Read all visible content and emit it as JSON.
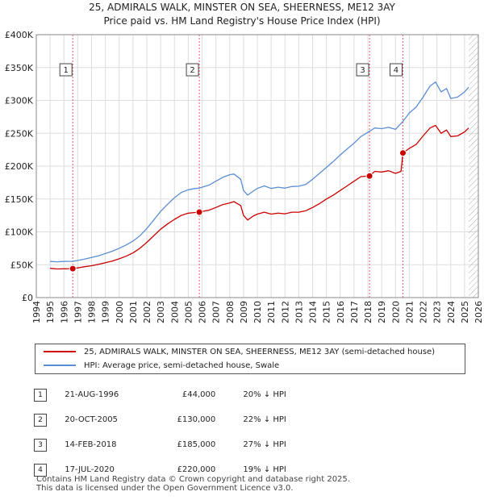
{
  "chart_data": {
    "type": "line",
    "title": "25, ADMIRALS WALK, MINSTER ON SEA, SHEERNESS, ME12 3AY",
    "subtitle": "Price paid vs. HM Land Registry's House Price Index (HPI)",
    "xlim": [
      1994,
      2026
    ],
    "ylim": [
      0,
      400000
    ],
    "x_ticks": [
      "1994",
      "1995",
      "1996",
      "1997",
      "1998",
      "1999",
      "2000",
      "2001",
      "2002",
      "2003",
      "2004",
      "2005",
      "2006",
      "2007",
      "2008",
      "2009",
      "2010",
      "2011",
      "2012",
      "2013",
      "2014",
      "2015",
      "2016",
      "2017",
      "2018",
      "2019",
      "2020",
      "2021",
      "2022",
      "2023",
      "2024",
      "2025",
      "2026"
    ],
    "y_ticks": [
      {
        "value": 0,
        "label": "£0"
      },
      {
        "value": 50000,
        "label": "£50K"
      },
      {
        "value": 100000,
        "label": "£100K"
      },
      {
        "value": 150000,
        "label": "£150K"
      },
      {
        "value": 200000,
        "label": "£200K"
      },
      {
        "value": 250000,
        "label": "£250K"
      },
      {
        "value": 300000,
        "label": "£300K"
      },
      {
        "value": 350000,
        "label": "£350K"
      },
      {
        "value": 400000,
        "label": "£400K"
      }
    ],
    "series": [
      {
        "name": "25, ADMIRALS WALK, MINSTER ON SEA, SHEERNESS, ME12 3AY (semi-detached house)",
        "color": "#cc0000",
        "points": [
          [
            1995.0,
            44500
          ],
          [
            1995.5,
            43500
          ],
          [
            1996.0,
            43800
          ],
          [
            1996.64,
            44000
          ],
          [
            1997.0,
            45200
          ],
          [
            1997.5,
            47000
          ],
          [
            1998.0,
            48500
          ],
          [
            1998.5,
            50500
          ],
          [
            1999.0,
            53000
          ],
          [
            1999.5,
            55500
          ],
          [
            2000.0,
            59000
          ],
          [
            2000.5,
            63000
          ],
          [
            2001.0,
            68000
          ],
          [
            2001.5,
            75000
          ],
          [
            2002.0,
            84000
          ],
          [
            2002.5,
            94000
          ],
          [
            2003.0,
            104000
          ],
          [
            2003.5,
            112000
          ],
          [
            2004.0,
            119000
          ],
          [
            2004.5,
            125000
          ],
          [
            2005.0,
            128500
          ],
          [
            2005.5,
            129500
          ],
          [
            2005.8,
            130000
          ],
          [
            2006.0,
            131000
          ],
          [
            2006.5,
            133000
          ],
          [
            2007.0,
            137000
          ],
          [
            2007.5,
            141500
          ],
          [
            2008.0,
            144000
          ],
          [
            2008.3,
            146000
          ],
          [
            2008.8,
            140000
          ],
          [
            2009.0,
            125000
          ],
          [
            2009.3,
            118000
          ],
          [
            2009.7,
            124000
          ],
          [
            2010.0,
            127000
          ],
          [
            2010.5,
            130000
          ],
          [
            2011.0,
            127000
          ],
          [
            2011.5,
            128500
          ],
          [
            2012.0,
            127500
          ],
          [
            2012.5,
            130000
          ],
          [
            2013.0,
            130000
          ],
          [
            2013.5,
            132000
          ],
          [
            2014.0,
            137000
          ],
          [
            2014.5,
            143000
          ],
          [
            2015.0,
            150000
          ],
          [
            2015.5,
            156000
          ],
          [
            2016.0,
            163000
          ],
          [
            2016.5,
            170000
          ],
          [
            2017.0,
            177000
          ],
          [
            2017.5,
            184000
          ],
          [
            2018.12,
            185000
          ],
          [
            2018.5,
            192000
          ],
          [
            2019.0,
            191000
          ],
          [
            2019.5,
            193000
          ],
          [
            2020.0,
            189000
          ],
          [
            2020.4,
            192000
          ],
          [
            2020.54,
            220000
          ],
          [
            2021.0,
            227000
          ],
          [
            2021.5,
            233000
          ],
          [
            2022.0,
            246000
          ],
          [
            2022.5,
            258000
          ],
          [
            2022.9,
            262000
          ],
          [
            2023.3,
            250000
          ],
          [
            2023.7,
            255000
          ],
          [
            2024.0,
            245000
          ],
          [
            2024.5,
            246000
          ],
          [
            2025.0,
            252000
          ],
          [
            2025.3,
            258000
          ]
        ]
      },
      {
        "name": "HPI: Average price, semi-detached house, Swale",
        "color": "#5b8ed6",
        "points": [
          [
            1995.0,
            55000
          ],
          [
            1995.5,
            54500
          ],
          [
            1996.0,
            55000
          ],
          [
            1996.64,
            55200
          ],
          [
            1997.0,
            56500
          ],
          [
            1997.5,
            58500
          ],
          [
            1998.0,
            61000
          ],
          [
            1998.5,
            63500
          ],
          [
            1999.0,
            67000
          ],
          [
            1999.5,
            70500
          ],
          [
            2000.0,
            75000
          ],
          [
            2000.5,
            80000
          ],
          [
            2001.0,
            86000
          ],
          [
            2001.5,
            94000
          ],
          [
            2002.0,
            105000
          ],
          [
            2002.5,
            118000
          ],
          [
            2003.0,
            131000
          ],
          [
            2003.5,
            142000
          ],
          [
            2004.0,
            152000
          ],
          [
            2004.5,
            160000
          ],
          [
            2005.0,
            164000
          ],
          [
            2005.5,
            166000
          ],
          [
            2005.8,
            166500
          ],
          [
            2006.0,
            168000
          ],
          [
            2006.5,
            171000
          ],
          [
            2007.0,
            177000
          ],
          [
            2007.5,
            183000
          ],
          [
            2008.0,
            187000
          ],
          [
            2008.3,
            188000
          ],
          [
            2008.8,
            180000
          ],
          [
            2009.0,
            163000
          ],
          [
            2009.3,
            156000
          ],
          [
            2009.7,
            162000
          ],
          [
            2010.0,
            166000
          ],
          [
            2010.5,
            170000
          ],
          [
            2011.0,
            166000
          ],
          [
            2011.5,
            168000
          ],
          [
            2012.0,
            166500
          ],
          [
            2012.5,
            169000
          ],
          [
            2013.0,
            169500
          ],
          [
            2013.5,
            172000
          ],
          [
            2014.0,
            180000
          ],
          [
            2014.5,
            189000
          ],
          [
            2015.0,
            198000
          ],
          [
            2015.5,
            207000
          ],
          [
            2016.0,
            217000
          ],
          [
            2016.5,
            226000
          ],
          [
            2017.0,
            235000
          ],
          [
            2017.5,
            245000
          ],
          [
            2018.12,
            253000
          ],
          [
            2018.5,
            258000
          ],
          [
            2019.0,
            257000
          ],
          [
            2019.5,
            259000
          ],
          [
            2020.0,
            256000
          ],
          [
            2020.54,
            268000
          ],
          [
            2021.0,
            281000
          ],
          [
            2021.5,
            290000
          ],
          [
            2022.0,
            305000
          ],
          [
            2022.5,
            322000
          ],
          [
            2022.9,
            328000
          ],
          [
            2023.3,
            313000
          ],
          [
            2023.7,
            318000
          ],
          [
            2024.0,
            303000
          ],
          [
            2024.5,
            305000
          ],
          [
            2025.0,
            313000
          ],
          [
            2025.3,
            320000
          ]
        ]
      }
    ],
    "hatched_region_after": 2025.3,
    "markers": [
      {
        "label": "1",
        "x": 1996.64,
        "y": 44000,
        "date": "21-AUG-1996",
        "price": "£44,000",
        "hpi": "20% ↓ HPI"
      },
      {
        "label": "2",
        "x": 2005.8,
        "y": 130000,
        "date": "20-OCT-2005",
        "price": "£130,000",
        "hpi": "22% ↓ HPI"
      },
      {
        "label": "3",
        "x": 2018.12,
        "y": 185000,
        "date": "14-FEB-2018",
        "price": "£185,000",
        "hpi": "27% ↓ HPI"
      },
      {
        "label": "4",
        "x": 2020.54,
        "y": 220000,
        "date": "17-JUL-2020",
        "price": "£220,000",
        "hpi": "19% ↓ HPI"
      }
    ],
    "legend_position": "bottom"
  },
  "footer": {
    "line1": "Contains HM Land Registry data © Crown copyright and database right 2025.",
    "line2": "This data is licensed under the Open Government Licence v3.0."
  }
}
